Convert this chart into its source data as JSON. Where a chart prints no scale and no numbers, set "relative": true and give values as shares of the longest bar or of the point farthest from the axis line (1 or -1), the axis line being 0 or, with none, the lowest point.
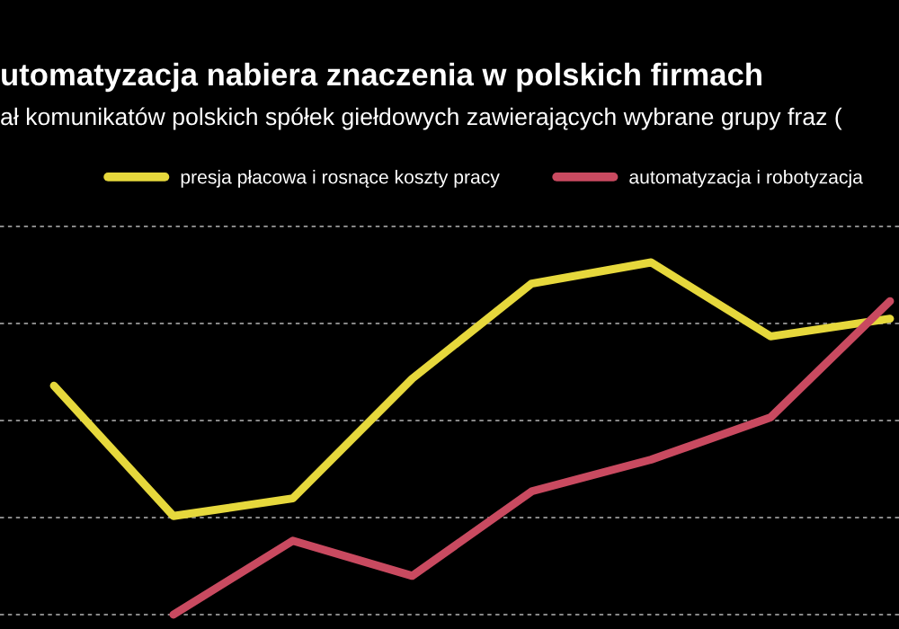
{
  "chart_data": {
    "type": "line",
    "title": "utomatyzacja nabiera znaczenia w polskich firmach",
    "subtitle": "ał komunikatów polskich spółek giełdowych zawierających wybrane grupy fraz (",
    "categories": [
      null,
      null,
      null,
      null,
      null,
      null,
      null,
      null
    ],
    "series": [
      {
        "name": "presja płacowa i rosnące koszty pracy",
        "color": "#e6d83c",
        "values": [
          0.65,
          0.28,
          0.33,
          0.67,
          0.94,
          1.0,
          0.79,
          0.84
        ]
      },
      {
        "name": "automatyzacja i robotyzacja",
        "color": "#c94a60",
        "values": [
          null,
          0,
          0.21,
          0.11,
          0.35,
          0.44,
          0.56,
          0.89
        ]
      }
    ],
    "relative": true,
    "grid": true,
    "legend": "top"
  }
}
